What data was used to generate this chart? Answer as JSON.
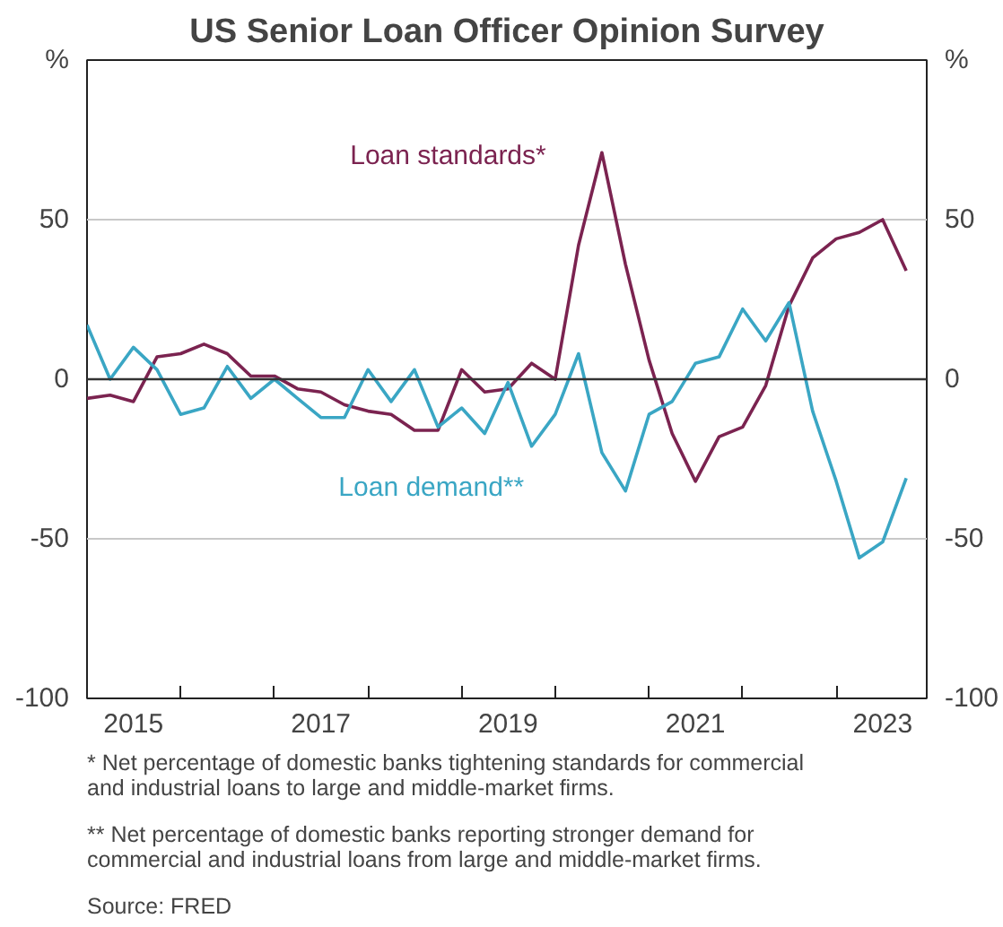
{
  "chart_data": {
    "type": "line",
    "title": "US Senior Loan Officer Opinion Survey",
    "x": [
      "2015-01",
      "2015-04",
      "2015-07",
      "2015-10",
      "2016-01",
      "2016-04",
      "2016-07",
      "2016-10",
      "2017-01",
      "2017-04",
      "2017-07",
      "2017-10",
      "2018-01",
      "2018-04",
      "2018-07",
      "2018-10",
      "2019-01",
      "2019-04",
      "2019-07",
      "2019-10",
      "2020-01",
      "2020-04",
      "2020-07",
      "2020-10",
      "2021-01",
      "2021-04",
      "2021-07",
      "2021-10",
      "2022-01",
      "2022-04",
      "2022-07",
      "2022-10",
      "2023-01",
      "2023-04",
      "2023-07",
      "2023-10"
    ],
    "series": [
      {
        "name": "Loan standards*",
        "color": "#7b2350",
        "values": [
          -6,
          -5,
          -7,
          7,
          8,
          11,
          8,
          1,
          1,
          -3,
          -4,
          -8,
          -10,
          -11,
          -16,
          -16,
          3,
          -4,
          -3,
          5,
          0,
          42,
          71,
          36,
          6,
          -17,
          -32,
          -18,
          -15,
          -2,
          23,
          38,
          44,
          46,
          50,
          34
        ]
      },
      {
        "name": "Loan demand**",
        "color": "#3aa6c4",
        "values": [
          17,
          0,
          10,
          3,
          -11,
          -9,
          4,
          -6,
          0,
          -6,
          -12,
          -12,
          3,
          -7,
          3,
          -15,
          -9,
          -17,
          -1,
          -21,
          -11,
          8,
          -23,
          -35,
          -11,
          -7,
          5,
          7,
          22,
          12,
          24,
          -10,
          -32,
          -56,
          -51,
          -31
        ]
      }
    ],
    "xlim": [
      "2015-01",
      "2023-12-20"
    ],
    "xticks": [
      {
        "value": "2016-01",
        "label": null
      },
      {
        "value": "2017-01",
        "label": null
      },
      {
        "value": "2018-01",
        "label": null
      },
      {
        "value": "2019-01",
        "label": null
      },
      {
        "value": "2020-01",
        "label": null
      },
      {
        "value": "2021-01",
        "label": null
      },
      {
        "value": "2022-01",
        "label": null
      },
      {
        "value": "2023-01",
        "label": null
      },
      {
        "value": "2015-07",
        "label": "2015"
      },
      {
        "value": "2017-07",
        "label": "2017"
      },
      {
        "value": "2019-07",
        "label": "2019"
      },
      {
        "value": "2021-07",
        "label": "2021"
      },
      {
        "value": "2023-07",
        "label": "2023"
      }
    ],
    "ylim": [
      -100,
      100
    ],
    "yticks": [
      -100,
      -50,
      0,
      50,
      {
        "value": 100,
        "label": "%"
      }
    ],
    "y2lim": [
      -100,
      100
    ],
    "y2ticks": [
      -100,
      -50,
      0,
      50,
      {
        "value": 100,
        "label": "%"
      }
    ],
    "grid": "y",
    "ref_lines": [
      {
        "axis": "y",
        "value": 0,
        "color": "#333333"
      }
    ],
    "annotations": [
      "*\tNet percentage of domestic banks tightening standards for commercial and industrial loans to large and middle-market firms.",
      "**\tNet percentage of domestic banks reporting stronger demand for commercial and industrial loans from large and middle-market firms.",
      "Source:\tFRED"
    ]
  }
}
